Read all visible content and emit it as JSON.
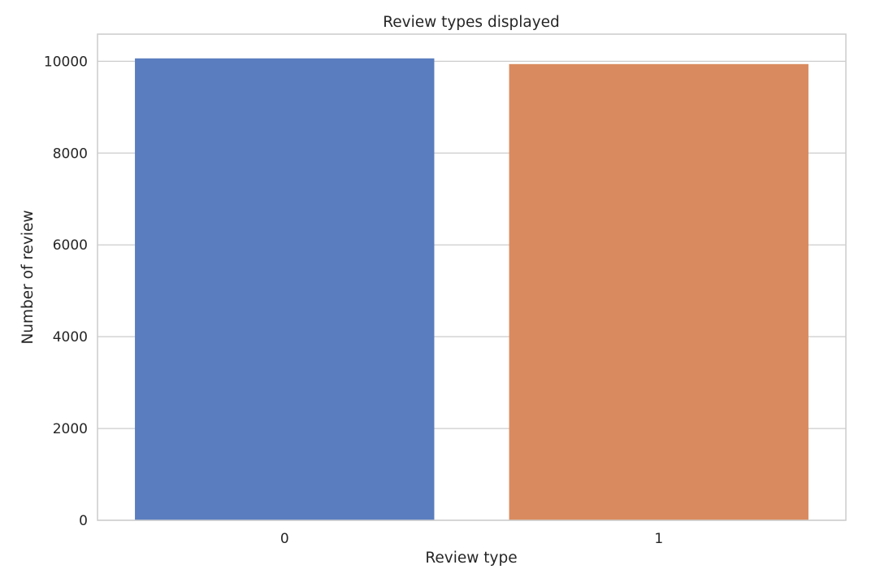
{
  "chart_data": {
    "type": "bar",
    "title": "Review types displayed",
    "xlabel": "Review type",
    "ylabel": "Number of review",
    "categories": [
      "0",
      "1"
    ],
    "values": [
      10062,
      9938
    ],
    "colors": [
      "#5a7dbf",
      "#d98b5f"
    ],
    "ylim": [
      0,
      10590
    ],
    "yticks": [
      0,
      2000,
      4000,
      6000,
      8000,
      10000
    ],
    "grid": true,
    "legend": "none"
  }
}
